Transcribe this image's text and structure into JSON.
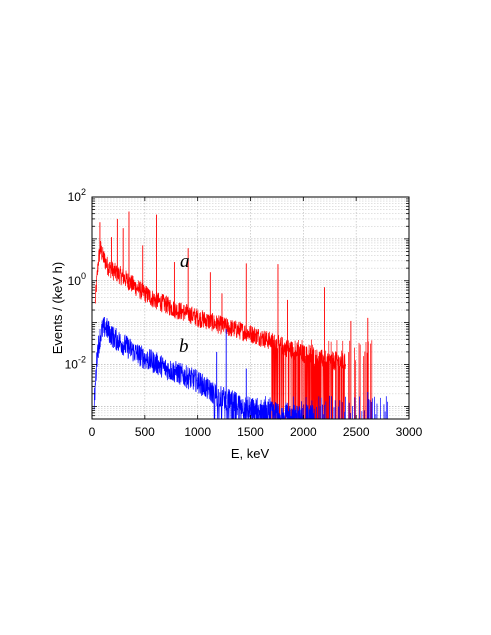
{
  "chart_data": {
    "type": "line",
    "xlabel": "E, keV",
    "ylabel": "Events / (keV h)",
    "xlim": [
      0,
      3000
    ],
    "ylim": [
      0.0005,
      100
    ],
    "y_scale": "log",
    "grid": true,
    "x_ticks": [
      "0",
      "500",
      "1000",
      "1500",
      "2000",
      "2500",
      "3000"
    ],
    "y_ticks": [
      {
        "value": 0.01,
        "base": "10",
        "exp": "-2"
      },
      {
        "value": 1,
        "base": "10",
        "exp": "0"
      },
      {
        "value": 100,
        "base": "10",
        "exp": "2"
      }
    ],
    "series": [
      {
        "name": "a",
        "color": "#ff0000",
        "continuum": [
          [
            30,
            0.3
          ],
          [
            60,
            3.0
          ],
          [
            80,
            6.0
          ],
          [
            100,
            4.0
          ],
          [
            150,
            2.2
          ],
          [
            200,
            1.7
          ],
          [
            300,
            1.2
          ],
          [
            400,
            0.75
          ],
          [
            500,
            0.5
          ],
          [
            600,
            0.34
          ],
          [
            700,
            0.27
          ],
          [
            800,
            0.2
          ],
          [
            900,
            0.17
          ],
          [
            1000,
            0.13
          ],
          [
            1100,
            0.11
          ],
          [
            1200,
            0.09
          ],
          [
            1300,
            0.075
          ],
          [
            1400,
            0.065
          ],
          [
            1500,
            0.055
          ],
          [
            1600,
            0.045
          ],
          [
            1700,
            0.035
          ],
          [
            1800,
            0.028
          ],
          [
            1900,
            0.022
          ],
          [
            2000,
            0.018
          ],
          [
            2100,
            0.015
          ],
          [
            2200,
            0.013
          ],
          [
            2300,
            0.012
          ],
          [
            2400,
            0.011
          ]
        ],
        "peaks": [
          [
            75,
            25
          ],
          [
            185,
            11
          ],
          [
            240,
            30
          ],
          [
            295,
            18
          ],
          [
            350,
            45
          ],
          [
            480,
            7
          ],
          [
            610,
            38
          ],
          [
            780,
            2.8
          ],
          [
            910,
            6
          ],
          [
            1120,
            1.6
          ],
          [
            1230,
            0.5
          ],
          [
            1460,
            2.6
          ],
          [
            1760,
            2.5
          ],
          [
            1850,
            0.35
          ],
          [
            2200,
            0.7
          ],
          [
            2450,
            0.11
          ],
          [
            2610,
            0.13
          ]
        ]
      },
      {
        "name": "b",
        "color": "#0000ff",
        "continuum": [
          [
            20,
            0.001
          ],
          [
            50,
            0.02
          ],
          [
            80,
            0.05
          ],
          [
            100,
            0.07
          ],
          [
            130,
            0.08
          ],
          [
            150,
            0.065
          ],
          [
            200,
            0.045
          ],
          [
            300,
            0.03
          ],
          [
            400,
            0.02
          ],
          [
            500,
            0.014
          ],
          [
            600,
            0.011
          ],
          [
            700,
            0.008
          ],
          [
            800,
            0.0065
          ],
          [
            900,
            0.005
          ],
          [
            1000,
            0.004
          ],
          [
            1100,
            0.0025
          ],
          [
            1200,
            0.0018
          ],
          [
            1300,
            0.0014
          ],
          [
            1400,
            0.0011
          ],
          [
            1500,
            0.0009
          ],
          [
            1600,
            0.0008
          ],
          [
            1700,
            0.0007
          ],
          [
            1800,
            0.0007
          ],
          [
            1900,
            0.0006
          ],
          [
            2000,
            0.0006
          ],
          [
            2100,
            0.0006
          ]
        ],
        "peaks": [
          [
            1270,
            0.07
          ],
          [
            1180,
            0.02
          ],
          [
            1460,
            0.008
          ],
          [
            2610,
            0.0022
          ]
        ]
      }
    ]
  }
}
